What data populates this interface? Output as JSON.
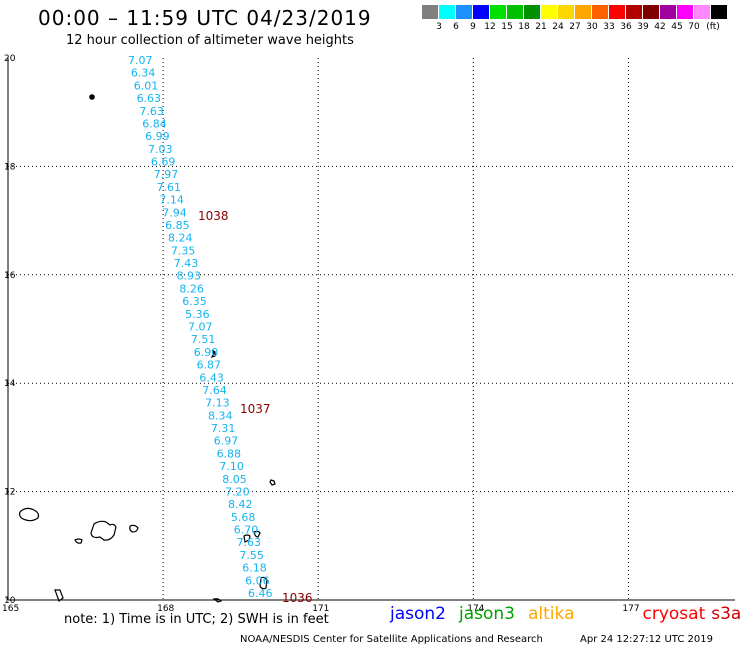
{
  "header": {
    "title": "00:00 – 11:59 UTC 04/23/2019",
    "subtitle": "12 hour collection of altimeter wave heights"
  },
  "colorbar": {
    "unit": "(ft)",
    "bins": [
      {
        "label": "",
        "color": "#808080"
      },
      {
        "label": "3",
        "color": "#00ffff"
      },
      {
        "label": "6",
        "color": "#1e90ff"
      },
      {
        "label": "9",
        "color": "#0000ff"
      },
      {
        "label": "12",
        "color": "#00e000"
      },
      {
        "label": "15",
        "color": "#00c000"
      },
      {
        "label": "18",
        "color": "#009000"
      },
      {
        "label": "21",
        "color": "#ffff00"
      },
      {
        "label": "24",
        "color": "#ffd700"
      },
      {
        "label": "27",
        "color": "#ffa500"
      },
      {
        "label": "30",
        "color": "#ff6000"
      },
      {
        "label": "33",
        "color": "#ff0000"
      },
      {
        "label": "36",
        "color": "#b00000"
      },
      {
        "label": "39",
        "color": "#800000"
      },
      {
        "label": "42",
        "color": "#a000a0"
      },
      {
        "label": "45",
        "color": "#ff00ff"
      },
      {
        "label": "70",
        "color": "#ff88ff"
      },
      {
        "label": "",
        "color": "#000000"
      }
    ]
  },
  "map": {
    "lat_labels": [
      "20",
      "18",
      "16",
      "14",
      "12",
      "10"
    ],
    "lon_labels": [
      "165",
      "168",
      "171",
      "174",
      "177"
    ],
    "track_color": "#14b4f0",
    "track_values": [
      "7.07",
      "6.34",
      "6.01",
      "6.63",
      "7.63",
      "6.84",
      "6.99",
      "7.03",
      "6.69",
      "7.97",
      "7.61",
      "7.14",
      "7.94",
      "6.85",
      "8.24",
      "7.35",
      "7.43",
      "8.93",
      "8.26",
      "6.35",
      "5.36",
      "7.07",
      "7.51",
      "6.90",
      "6.87",
      "6.43",
      "7.64",
      "7.13",
      "8.34",
      "7.31",
      "6.97",
      "6.88",
      "7.10",
      "8.05",
      "7.20",
      "8.42",
      "5.68",
      "6.70",
      "7.63",
      "7.55",
      "6.18",
      "6.06",
      "6.46"
    ],
    "pressure_color": "#8b0000",
    "pressure_labels": [
      "1038",
      "1037",
      "1036"
    ]
  },
  "footer": {
    "note": "note: 1) Time is in UTC; 2) SWH is in feet",
    "legend": [
      {
        "name": "jason2",
        "color": "#0000ff"
      },
      {
        "name": "jason3",
        "color": "#00a000"
      },
      {
        "name": "altika",
        "color": "#ffa500"
      },
      {
        "name": "cryosat",
        "color": "#ff0000"
      },
      {
        "name": "s3a",
        "color": "#d00000"
      }
    ],
    "credit": "NOAA/NESDIS Center for Satellite Applications and Research",
    "timestamp": "Apr 24 12:27:12 UTC 2019"
  }
}
